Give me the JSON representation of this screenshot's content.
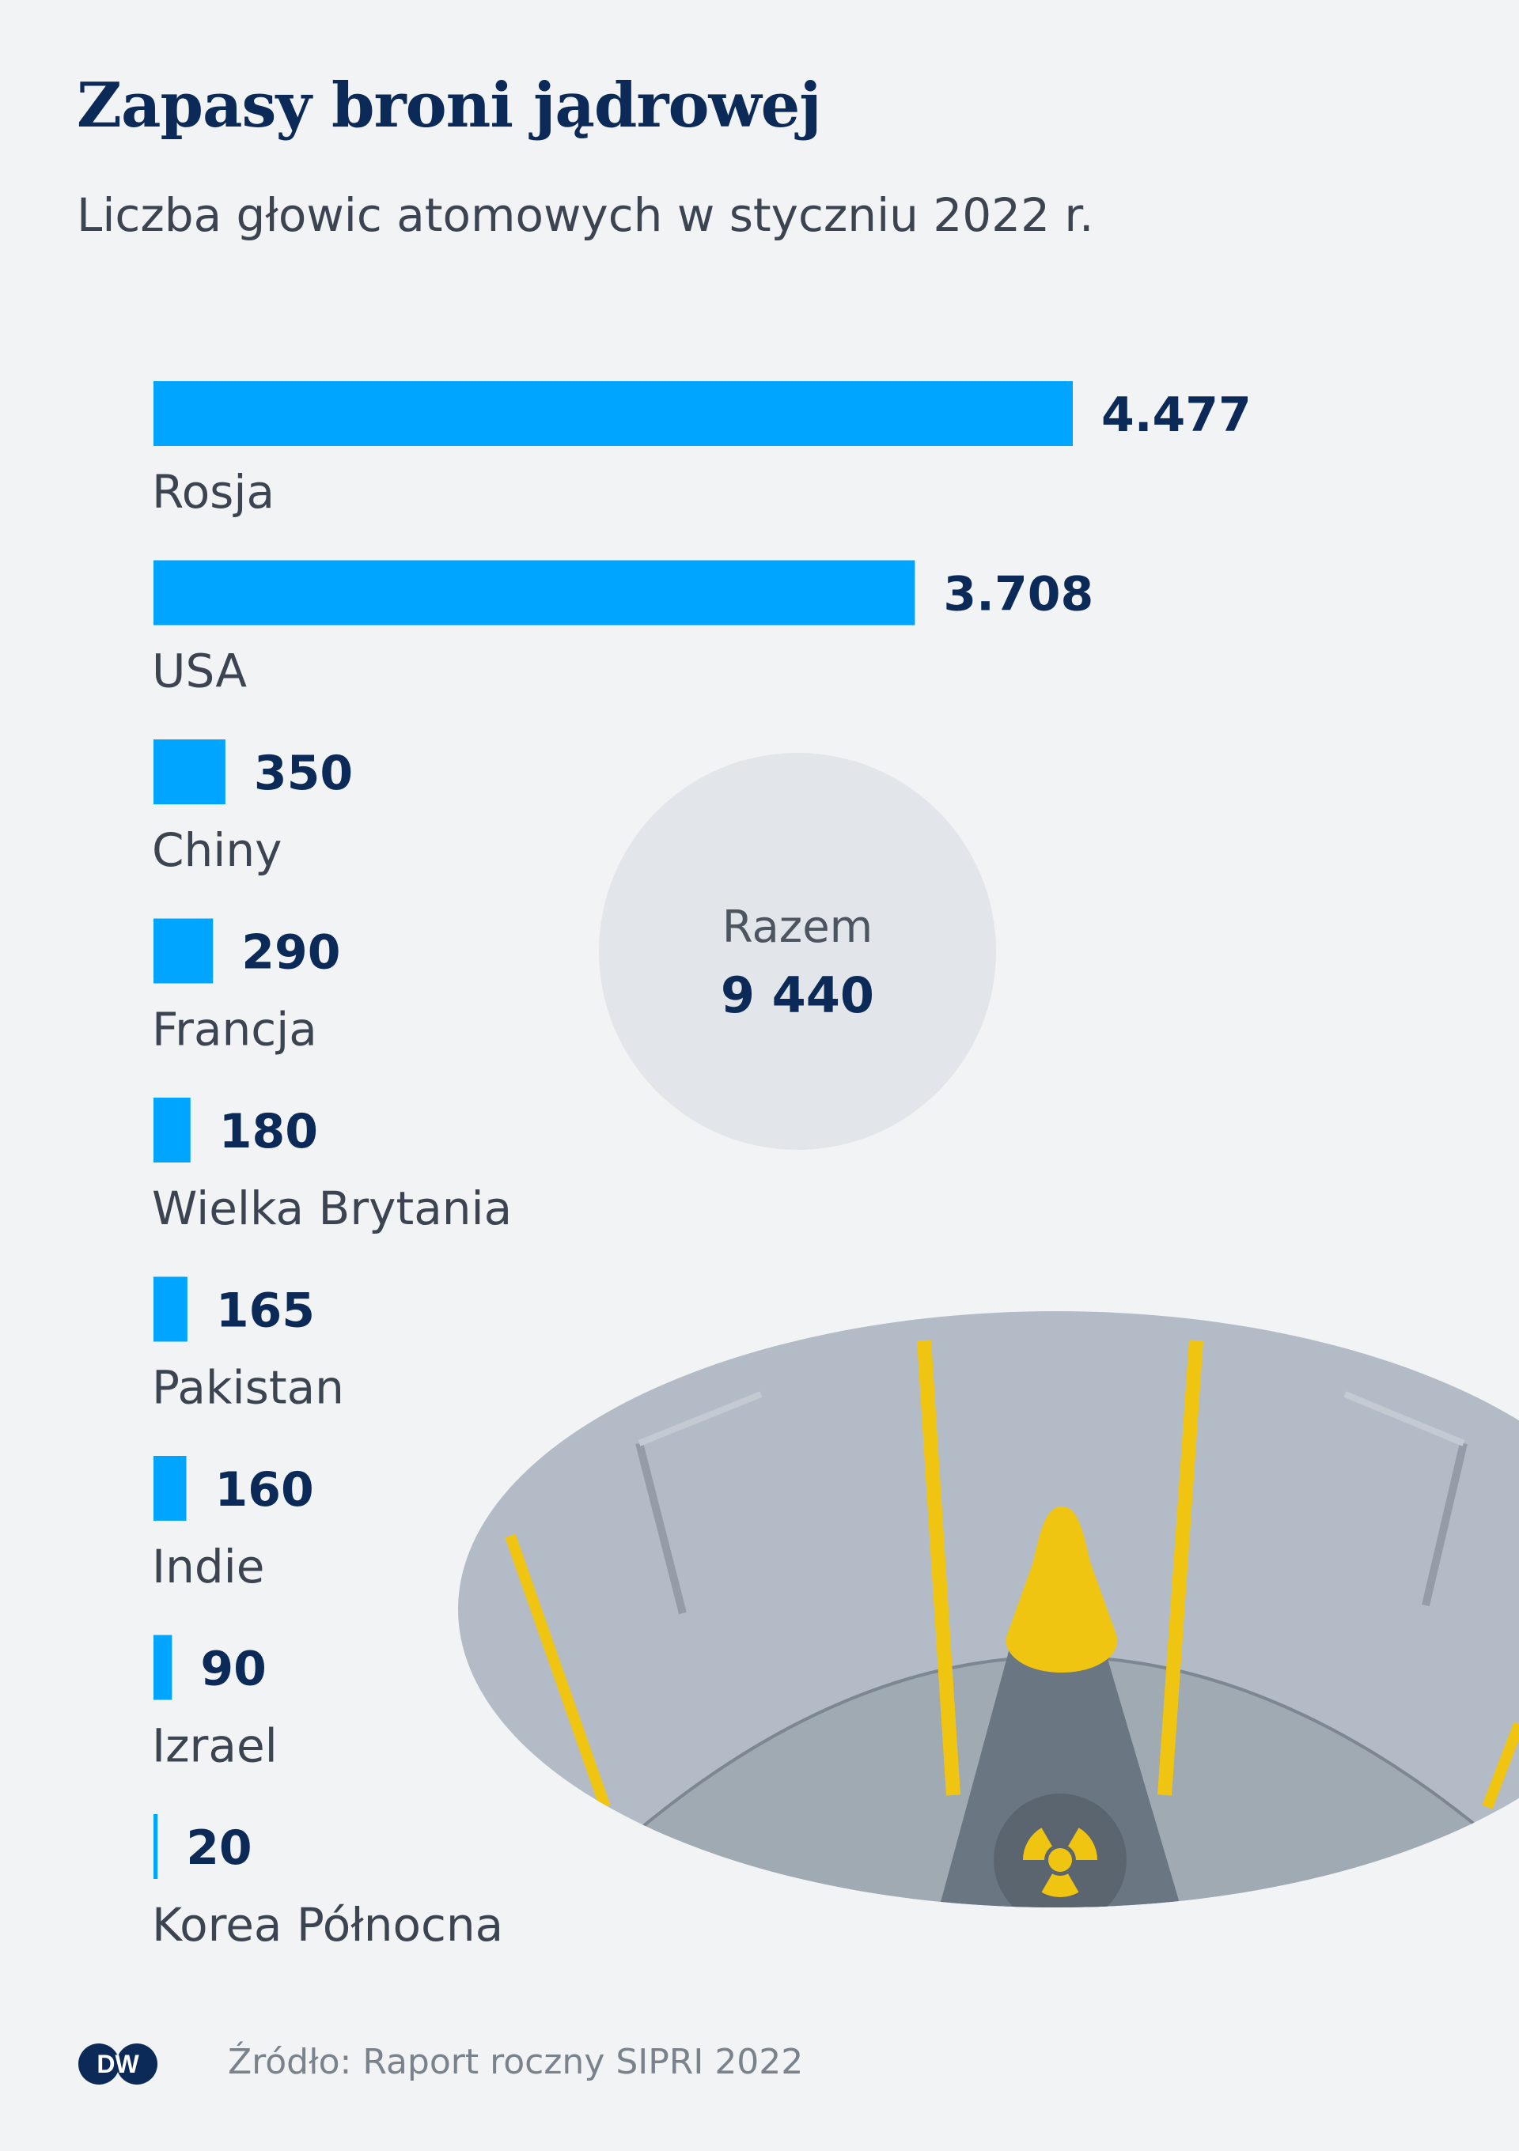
{
  "header": {
    "title": "Zapasy broni jądrowej",
    "subtitle": "Liczba głowic atomowych w styczniu 2022 r."
  },
  "total": {
    "label": "Razem",
    "value": "9 440"
  },
  "footer": {
    "source": "Źródło: Raport roczny SIPRI 2022",
    "logo_text": "DW",
    "logo_icon": "dw-logo-icon"
  },
  "colors": {
    "bar": "#00a5ff",
    "value_text": "#0c2a57",
    "label_text": "#3b4450",
    "background": "#f1f3f5"
  },
  "chart_data": {
    "type": "bar",
    "orientation": "horizontal",
    "categories": [
      "Rosja",
      "USA",
      "Chiny",
      "Francja",
      "Wielka Brytania",
      "Pakistan",
      "Indie",
      "Izrael",
      "Korea Północna"
    ],
    "values": [
      4477,
      3708,
      350,
      290,
      180,
      165,
      160,
      90,
      20
    ],
    "value_labels": [
      "4.477",
      "3.708",
      "350",
      "290",
      "180",
      "165",
      "160",
      "90",
      "20"
    ],
    "grid": false
  }
}
